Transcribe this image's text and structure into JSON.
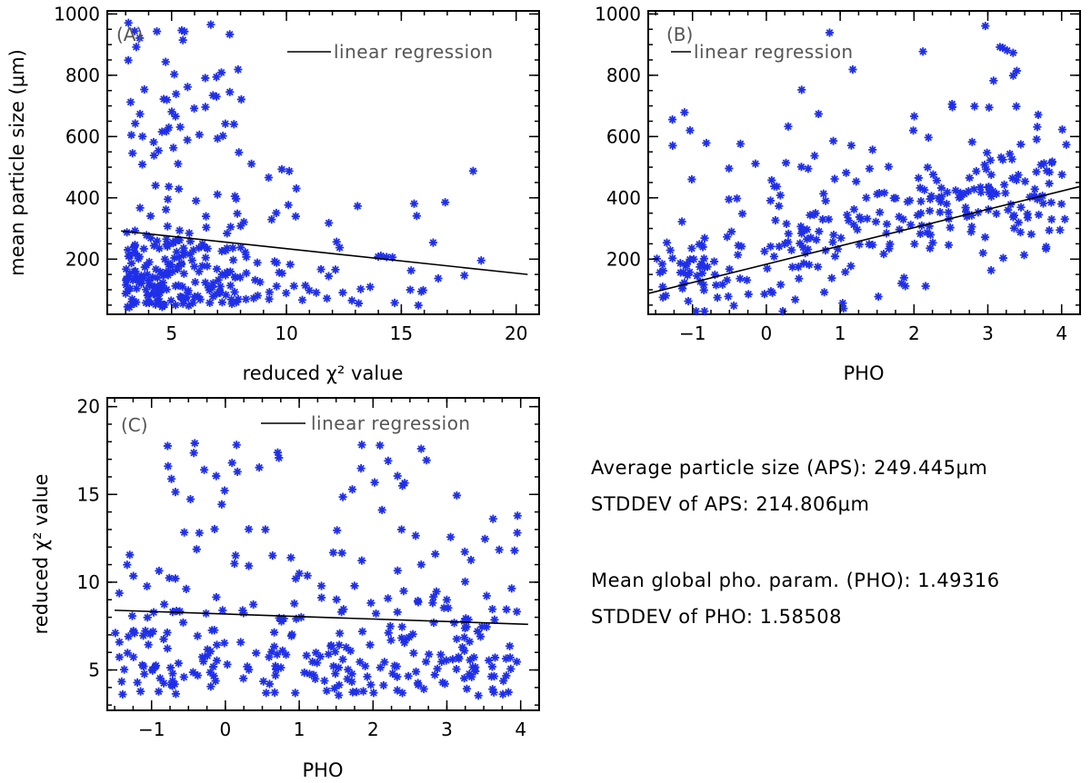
{
  "chart_data": [
    {
      "type": "scatter",
      "panel_label": "(A)",
      "xlabel": "reduced χ² value",
      "ylabel": "mean particle size (μm)",
      "xlim": [
        2.2,
        21
      ],
      "ylim": [
        20,
        1010
      ],
      "xticks": [
        5,
        10,
        15,
        20
      ],
      "yticks": [
        200,
        400,
        600,
        800,
        1000
      ],
      "legend": {
        "label": "linear regression",
        "position": "top-right"
      },
      "regression": {
        "x": [
          2.8,
          20.5
        ],
        "y": [
          292,
          150
        ]
      },
      "point_seed": 11,
      "point_count": 320
    },
    {
      "type": "scatter",
      "panel_label": "(B)",
      "xlabel": "PHO",
      "ylabel": "",
      "xlim": [
        -1.6,
        4.25
      ],
      "ylim": [
        20,
        1010
      ],
      "xticks": [
        -1,
        0,
        1,
        2,
        3,
        4
      ],
      "yticks": [
        200,
        400,
        600,
        800,
        1000
      ],
      "legend": {
        "label": "linear regression",
        "position": "top-center"
      },
      "regression": {
        "x": [
          -1.6,
          4.25
        ],
        "y": [
          88,
          437
        ]
      },
      "point_seed": 23,
      "point_count": 320
    },
    {
      "type": "scatter",
      "panel_label": "(C)",
      "xlabel": "PHO",
      "ylabel": "reduced χ² value",
      "xlim": [
        -1.6,
        4.25
      ],
      "ylim": [
        2.7,
        20.5
      ],
      "xticks": [
        -1,
        0,
        1,
        2,
        3,
        4
      ],
      "yticks": [
        5,
        10,
        15,
        20
      ],
      "legend": {
        "label": "linear regression",
        "position": "top-right"
      },
      "regression": {
        "x": [
          -1.5,
          4.1
        ],
        "y": [
          8.4,
          7.6
        ]
      },
      "point_seed": 37,
      "point_count": 320
    }
  ],
  "stats": {
    "aps_line": "Average particle size (APS): 249.445μm",
    "aps_std_line": "STDDEV of APS: 214.806μm",
    "pho_line": "Mean global pho. param. (PHO): 1.49316",
    "pho_std_line": "STDDEV of PHO: 1.58508"
  },
  "colors": {
    "points": "#1f2fe8",
    "line": "#000000",
    "background": "#ffffff"
  }
}
